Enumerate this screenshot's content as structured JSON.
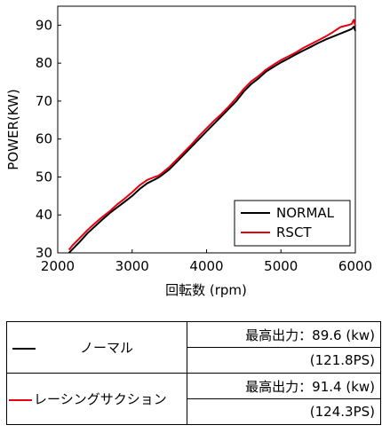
{
  "chart_data": {
    "type": "line",
    "xlabel": "回転数 (rpm)",
    "ylabel": "POWER(KW)",
    "xlim": [
      2000,
      6000
    ],
    "ylim": [
      30,
      95
    ],
    "xticks": [
      "2000",
      "3000",
      "4000",
      "5000",
      "6000"
    ],
    "yticks": [
      "30",
      "40",
      "50",
      "60",
      "70",
      "80",
      "90"
    ],
    "grid": false,
    "legend_position": "bottom-right",
    "series": [
      {
        "name": "NORMAL",
        "color": "#000000",
        "x": [
          2150,
          2200,
          2300,
          2400,
          2500,
          2600,
          2700,
          2800,
          2900,
          3000,
          3100,
          3200,
          3300,
          3350,
          3400,
          3500,
          3600,
          3700,
          3800,
          3900,
          4000,
          4100,
          4200,
          4300,
          4400,
          4500,
          4600,
          4700,
          4800,
          4900,
          5000,
          5100,
          5200,
          5300,
          5400,
          5500,
          5600,
          5700,
          5800,
          5900,
          5950,
          5980,
          6000
        ],
        "y": [
          30.0,
          31.0,
          33.0,
          35.2,
          37.0,
          38.8,
          40.5,
          42.0,
          43.5,
          45.0,
          46.8,
          48.3,
          49.3,
          49.8,
          50.5,
          52.0,
          54.0,
          56.0,
          58.0,
          60.0,
          62.0,
          64.0,
          66.0,
          68.0,
          70.0,
          72.5,
          74.5,
          76.0,
          77.8,
          79.0,
          80.2,
          81.2,
          82.3,
          83.3,
          84.3,
          85.3,
          86.2,
          87.0,
          87.8,
          88.6,
          89.0,
          89.6,
          88.5
        ]
      },
      {
        "name": "RSCT",
        "color": "#e60012",
        "x": [
          2150,
          2200,
          2300,
          2400,
          2500,
          2600,
          2700,
          2800,
          2900,
          3000,
          3100,
          3200,
          3300,
          3350,
          3400,
          3500,
          3600,
          3700,
          3800,
          3900,
          4000,
          4100,
          4200,
          4300,
          4400,
          4500,
          4600,
          4700,
          4800,
          4900,
          5000,
          5100,
          5200,
          5300,
          5400,
          5500,
          5600,
          5700,
          5800,
          5900,
          5950,
          5980,
          6000
        ],
        "y": [
          30.8,
          32.0,
          34.0,
          36.0,
          37.8,
          39.5,
          41.0,
          42.8,
          44.3,
          46.0,
          47.8,
          49.2,
          50.0,
          50.3,
          51.0,
          52.6,
          54.6,
          56.6,
          58.6,
          60.8,
          62.8,
          64.8,
          66.6,
          68.6,
          70.8,
          73.2,
          75.2,
          76.6,
          78.3,
          79.6,
          80.8,
          81.8,
          82.8,
          84.0,
          85.0,
          86.0,
          87.0,
          88.2,
          89.5,
          90.0,
          90.3,
          91.4,
          89.8
        ]
      }
    ]
  },
  "table": {
    "rows": [
      {
        "name": "ノーマル",
        "swatch": "#000000",
        "max_power": "最高出力：89.6 (kw)",
        "ps": "(121.8PS)"
      },
      {
        "name": "レーシングサクション",
        "swatch": "#e60012",
        "max_power": "最高出力：91.4 (kw)",
        "ps": "(124.3PS)"
      }
    ]
  }
}
